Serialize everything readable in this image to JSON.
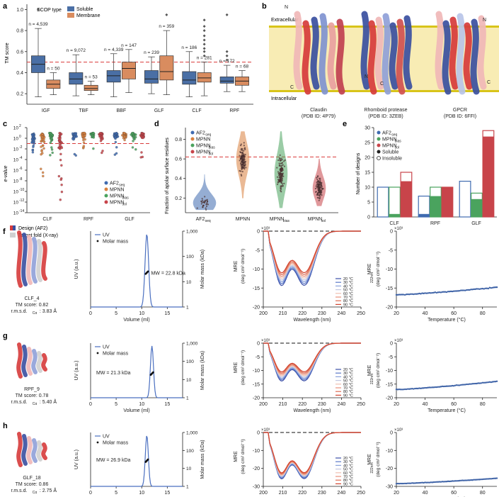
{
  "colors": {
    "soluble": "#4a6fa5",
    "membrane": "#d98c5f",
    "af2seq": "#3f6bb0",
    "mpnn": "#d9813f",
    "mpnnbias": "#4aa35e",
    "mpnnsol": "#c8444a",
    "threshold": "#d93a3a",
    "membraneband": "#f8ecb4",
    "bandline": "#d8c41a",
    "helixblue": "#3a4fa0",
    "helixred": "#d63b3b",
    "helixpink": "#f0b7b7",
    "helixgray": "#d0d0d0",
    "sec": "#4a6fc0",
    "cd": "#d9553b",
    "thermal": "#3c61a6"
  },
  "panels": {
    "a": {
      "letter": "a",
      "legend_title": "SCOP type",
      "legend": [
        "Soluble",
        "Membrane"
      ],
      "ylabel": "TM score",
      "yticks": [
        "0.2",
        "0.4",
        "0.6",
        "0.8",
        "1.0"
      ],
      "categories": [
        "IGF",
        "TBF",
        "BBF",
        "GLF",
        "CLF",
        "RPF"
      ],
      "threshold": 0.5
    },
    "b": {
      "letter": "b",
      "extracellular": "Extracellular",
      "intracellular": "Intracellular",
      "proteins": [
        {
          "name": "Claudin",
          "pdb": "(PDB ID: 4P79)",
          "n": "N",
          "c": "C"
        },
        {
          "name": "Rhomboid protease",
          "pdb": "(PDB ID: 3ZEB)",
          "n": "N",
          "c": "C"
        },
        {
          "name": "GPCR",
          "pdb": "(PDB ID: 6FFI)",
          "n": "N",
          "c": "C"
        }
      ]
    },
    "c": {
      "letter": "c",
      "ylabel": "e-value",
      "yticks": [
        "10^2",
        "10^0",
        "10^-2",
        "10^-4",
        "10^-6",
        "10^-8",
        "10^-10",
        "10^-12",
        "10^-14"
      ],
      "categories": [
        "CLF",
        "RPF",
        "GLF"
      ],
      "legend": [
        "AF2seq",
        "MPNN",
        "MPNNbias",
        "MPNNsol"
      ]
    },
    "d": {
      "letter": "d",
      "ylabel": "Fraction of apolar surface residues",
      "yticks": [
        "0.2",
        "0.4",
        "0.6",
        "0.8"
      ],
      "categories": [
        "AF2seq",
        "MPNN",
        "MPNNbias",
        "MPNNsol"
      ],
      "legend": [
        "AF2seq",
        "MPNN",
        "MPNNbias",
        "MPNNsol"
      ],
      "threshold": 0.62
    },
    "e": {
      "letter": "e",
      "ylabel": "Number of designs",
      "yticks": [
        "0",
        "5",
        "10",
        "15",
        "20",
        "25",
        "30"
      ],
      "categories": [
        "CLF",
        "RPF",
        "GLF"
      ],
      "legend": [
        "AF2seq",
        "MPNNbias",
        "MPNNsol",
        "Soluble",
        "Insoluble"
      ]
    },
    "f": {
      "letter": "f",
      "legend": [
        "Design (AF2)",
        "Target fold (X-ray)"
      ],
      "protein": "CLF_4",
      "tm": "TM score: 0.82",
      "rmsd": "r.m.s.d.",
      "rmsd_sub": "Cα",
      "rmsd_val": ": 3.83 Å",
      "mw": "MW = 22.8 kDa"
    },
    "g": {
      "letter": "g",
      "protein": "RPF_9",
      "tm": "TM score: 0.78",
      "rmsd": "r.m.s.d.",
      "rmsd_sub": "Cα",
      "rmsd_val": ": 5.40 Å",
      "mw": "MW = 21.3 kDa"
    },
    "h": {
      "letter": "h",
      "protein": "GLF_18",
      "tm": "TM score: 0.86",
      "rmsd": "r.m.s.d.",
      "rmsd_sub": "Cα",
      "rmsd_val": ": 2.75 Å",
      "mw": "MW = 26.9 kDa"
    },
    "sec": {
      "legend_line": "UV",
      "legend_dot": "Molar mass",
      "ylabel": "UV (a.u.)",
      "y2label": "Molar mass (kDa)",
      "xlabel": "Volume (ml)",
      "xticks": [
        "0",
        "5",
        "10",
        "15"
      ],
      "y2ticks": [
        "1,000",
        "100",
        "10",
        "1"
      ]
    },
    "cd": {
      "ylabel": "MRE",
      "ylabel2": "(deg cm² dmol⁻¹)",
      "xlabel": "Wavelength (nm)",
      "exponent": "×10³",
      "xticks": [
        "200",
        "210",
        "220",
        "230",
        "240",
        "250"
      ],
      "temps": [
        "20 °C",
        "30 °C",
        "40 °C",
        "50 °C",
        "60 °C",
        "70 °C",
        "80 °C",
        "90 °C"
      ]
    },
    "tm": {
      "ylabel": "MRE",
      "ylabel_sub": "222nm",
      "ylabel2": "(deg cm² dmol⁻¹)",
      "xlabel": "Temperature (°C)",
      "exponent": "×10³",
      "xticks": [
        "20",
        "40",
        "60",
        "80"
      ]
    }
  },
  "chart_data": [
    {
      "id": "a",
      "type": "box",
      "title": "",
      "xlabel": "",
      "ylabel": "TM score",
      "ylim": [
        0.1,
        1.05
      ],
      "categories": [
        "IGF",
        "TBF",
        "BBF",
        "GLF",
        "CLF",
        "RPF"
      ],
      "series": [
        {
          "name": "Soluble",
          "n": [
            "n = 4,539",
            "n = 9,072",
            "n = 4,339",
            "n = 239",
            "n = 186",
            "n = 172"
          ],
          "boxes": [
            {
              "min": 0.17,
              "q1": 0.4,
              "median": 0.48,
              "q3": 0.56,
              "max": 0.82
            },
            {
              "min": 0.18,
              "q1": 0.29,
              "median": 0.34,
              "q3": 0.4,
              "max": 0.57
            },
            {
              "min": 0.17,
              "q1": 0.31,
              "median": 0.37,
              "q3": 0.42,
              "max": 0.58
            },
            {
              "min": 0.2,
              "q1": 0.3,
              "median": 0.34,
              "q3": 0.42,
              "max": 0.55
            },
            {
              "min": 0.17,
              "q1": 0.29,
              "median": 0.33,
              "q3": 0.41,
              "max": 0.6
            },
            {
              "min": 0.22,
              "q1": 0.3,
              "median": 0.32,
              "q3": 0.36,
              "max": 0.47
            }
          ]
        },
        {
          "name": "Membrane",
          "n": [
            "n = 50",
            "n = 53",
            "n = 147",
            "n = 359",
            "n = 281",
            "n = 68"
          ],
          "boxes": [
            {
              "min": 0.19,
              "q1": 0.25,
              "median": 0.29,
              "q3": 0.33,
              "max": 0.4
            },
            {
              "min": 0.19,
              "q1": 0.23,
              "median": 0.25,
              "q3": 0.28,
              "max": 0.32
            },
            {
              "min": 0.21,
              "q1": 0.34,
              "median": 0.44,
              "q3": 0.5,
              "max": 0.62
            },
            {
              "min": 0.19,
              "q1": 0.33,
              "median": 0.41,
              "q3": 0.56,
              "max": 0.8
            },
            {
              "min": 0.18,
              "q1": 0.31,
              "median": 0.35,
              "q3": 0.4,
              "max": 0.5
            },
            {
              "min": 0.22,
              "q1": 0.28,
              "median": 0.32,
              "q3": 0.36,
              "max": 0.42
            }
          ]
        }
      ],
      "outliers": [
        {
          "cat": 4,
          "series": 1,
          "values": [
            0.56,
            0.6,
            0.63,
            0.67,
            0.71,
            0.75,
            0.8,
            0.84,
            0.9
          ]
        },
        {
          "cat": 5,
          "series": 0,
          "values": [
            0.52,
            0.56,
            0.6,
            0.95
          ]
        },
        {
          "cat": 0,
          "series": 0,
          "values": [
            1.0
          ]
        },
        {
          "cat": 3,
          "series": 1,
          "values": [
            0.95
          ]
        }
      ],
      "threshold": 0.5
    },
    {
      "id": "c",
      "type": "strip",
      "ylabel": "e-value",
      "ylim_log10": [
        -14,
        2
      ],
      "categories": [
        "CLF",
        "RPF",
        "GLF"
      ],
      "series": [
        "AF2seq",
        "MPNN",
        "MPNNbias",
        "MPNNsol"
      ],
      "threshold_log10": -1
    },
    {
      "id": "d",
      "type": "violin",
      "ylabel": "Fraction of apolar surface residues",
      "ylim": [
        0.05,
        0.92
      ],
      "categories": [
        "AF2seq",
        "MPNN",
        "MPNNbias",
        "MPNNsol"
      ],
      "medians": [
        0.15,
        0.6,
        0.45,
        0.3
      ],
      "ranges": [
        [
          0.08,
          0.44
        ],
        [
          0.2,
          0.88
        ],
        [
          0.1,
          0.88
        ],
        [
          0.12,
          0.6
        ]
      ],
      "threshold": 0.62
    },
    {
      "id": "e",
      "type": "bar",
      "ylabel": "Number of designs",
      "ylim": [
        0,
        30
      ],
      "categories": [
        "CLF",
        "RPF",
        "GLF"
      ],
      "series": [
        {
          "name": "AF2seq",
          "total": [
            10,
            7,
            12
          ],
          "soluble": [
            0,
            1,
            0
          ]
        },
        {
          "name": "MPNNbias",
          "total": [
            10,
            10,
            8
          ],
          "soluble": [
            1,
            7,
            6
          ]
        },
        {
          "name": "MPNNsol",
          "total": [
            15,
            10,
            29
          ],
          "soluble": [
            12,
            10,
            27
          ]
        }
      ]
    },
    {
      "id": "sec",
      "type": "line",
      "xlabel": "Volume (ml)",
      "xlim": [
        0,
        18
      ],
      "peaks": [
        {
          "row": "f",
          "center": 11.0,
          "width": 0.35,
          "mw": 22.8
        },
        {
          "row": "g",
          "center": 12.0,
          "width": 0.3,
          "mw": 21.3
        },
        {
          "row": "h",
          "center": 11.0,
          "width": 0.3,
          "mw": 26.9
        }
      ]
    },
    {
      "id": "cd",
      "type": "line",
      "xlabel": "Wavelength (nm)",
      "xlim": [
        200,
        250
      ],
      "temperatures": [
        20,
        30,
        40,
        50,
        60,
        70,
        80,
        90
      ],
      "rows": [
        {
          "row": "f",
          "ylim": [
            -20,
            0
          ],
          "min222": [
            -15,
            -14.5,
            -14,
            -13.5,
            -13,
            -12.5,
            -12,
            -11.5
          ]
        },
        {
          "row": "g",
          "ylim": [
            -20,
            0
          ],
          "min222": [
            -14.5,
            -14,
            -13.5,
            -13,
            -12.5,
            -12,
            -11.5,
            -11
          ]
        },
        {
          "row": "h",
          "ylim": [
            -30,
            0
          ],
          "min222": [
            -27,
            -26.5,
            -26,
            -25.5,
            -25,
            -24.5,
            -24,
            -23.5
          ]
        }
      ]
    },
    {
      "id": "tm",
      "type": "scatter",
      "xlabel": "Temperature (°C)",
      "xlim": [
        20,
        90
      ],
      "rows": [
        {
          "row": "f",
          "ylim": [
            -20,
            0
          ],
          "start": -16.8,
          "end": -14.8
        },
        {
          "row": "g",
          "ylim": [
            -20,
            0
          ],
          "start": -17.0,
          "end": -14.0
        },
        {
          "row": "h",
          "ylim": [
            -30,
            0
          ],
          "start": -28.5,
          "end": -25.5
        }
      ]
    }
  ]
}
